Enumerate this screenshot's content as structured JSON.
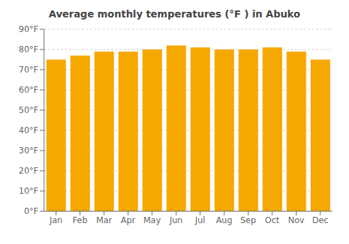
{
  "chart_data": {
    "type": "bar",
    "title": "Average monthly temperatures (°F ) in Abuko",
    "categories": [
      "Jan",
      "Feb",
      "Mar",
      "Apr",
      "May",
      "Jun",
      "Jul",
      "Aug",
      "Sep",
      "Oct",
      "Nov",
      "Dec"
    ],
    "values": [
      75,
      77,
      79,
      79,
      80,
      82,
      81,
      80,
      80,
      81,
      79,
      75
    ],
    "color": "#F5A800",
    "ylim": [
      0,
      90
    ],
    "yticks": [
      {
        "value": 0,
        "label": "0°F"
      },
      {
        "value": 10,
        "label": "10°F"
      },
      {
        "value": 20,
        "label": "20°F"
      },
      {
        "value": 30,
        "label": "30°F"
      },
      {
        "value": 40,
        "label": "40°F"
      },
      {
        "value": 50,
        "label": "50°F"
      },
      {
        "value": 60,
        "label": "60°F"
      },
      {
        "value": 70,
        "label": "70°F"
      },
      {
        "value": 80,
        "label": "80°F"
      },
      {
        "value": 90,
        "label": "90°F"
      }
    ],
    "grid": true
  }
}
